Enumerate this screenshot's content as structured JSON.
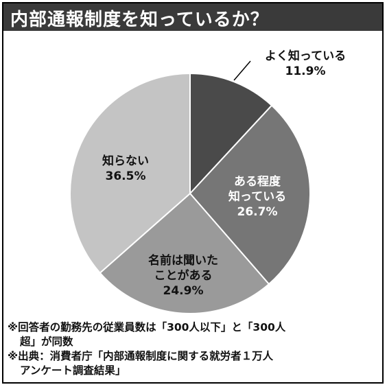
{
  "title": "内部通報制度を知っているか？",
  "chart_data": {
    "type": "pie",
    "title": "内部通報制度を知っているか？",
    "slices": [
      {
        "label_lines": [
          "よく知っている"
        ],
        "value_label": "11.9%",
        "value": 11.9,
        "color": "#4a4a4a",
        "label_color": "#111111"
      },
      {
        "label_lines": [
          "ある程度",
          "知っている"
        ],
        "value_label": "26.7%",
        "value": 26.7,
        "color": "#767676",
        "label_color": "#ffffff"
      },
      {
        "label_lines": [
          "名前は聞いた",
          "ことがある"
        ],
        "value_label": "24.9%",
        "value": 24.9,
        "color": "#9a9a9a",
        "label_color": "#111111"
      },
      {
        "label_lines": [
          "知らない"
        ],
        "value_label": "36.5%",
        "value": 36.5,
        "color": "#c4c4c4",
        "label_color": "#111111"
      }
    ]
  },
  "notes": {
    "line1": "※回答者の勤務先の従業員数は「300人以下」と「300人",
    "line2": "超」が同数",
    "line3": "※出典：消費者庁「内部通報制度に関する就労者１万人",
    "line4": "アンケート調査結果」"
  }
}
